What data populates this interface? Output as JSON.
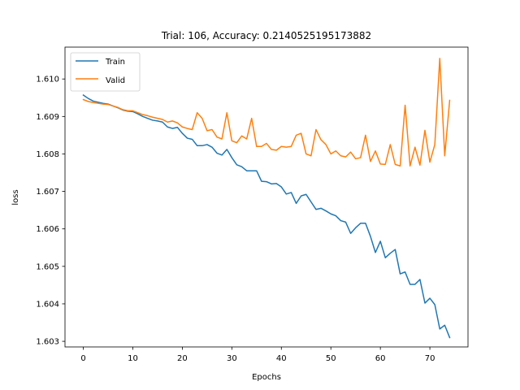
{
  "chart_data": {
    "type": "line",
    "title": "Trial: 106, Accuracy: 0.2140525195173882",
    "xlabel": "Epochs",
    "ylabel": "loss",
    "xlim": [
      -3.7,
      77.7
    ],
    "ylim": [
      1.60285,
      1.61085
    ],
    "xticks": [
      0,
      10,
      20,
      30,
      40,
      50,
      60,
      70
    ],
    "yticks": [
      1.603,
      1.604,
      1.605,
      1.606,
      1.607,
      1.608,
      1.609,
      1.61
    ],
    "ytick_labels": [
      "1.603",
      "1.604",
      "1.605",
      "1.606",
      "1.607",
      "1.608",
      "1.609",
      "1.610"
    ],
    "grid": false,
    "legend_position": "upper-left",
    "x": [
      0,
      1,
      2,
      3,
      4,
      5,
      6,
      7,
      8,
      9,
      10,
      11,
      12,
      13,
      14,
      15,
      16,
      17,
      18,
      19,
      20,
      21,
      22,
      23,
      24,
      25,
      26,
      27,
      28,
      29,
      30,
      31,
      32,
      33,
      34,
      35,
      36,
      37,
      38,
      39,
      40,
      41,
      42,
      43,
      44,
      45,
      46,
      47,
      48,
      49,
      50,
      51,
      52,
      53,
      54,
      55,
      56,
      57,
      58,
      59,
      60,
      61,
      62,
      63,
      64,
      65,
      66,
      67,
      68,
      69,
      70,
      71,
      72,
      73,
      74
    ],
    "series": [
      {
        "name": "Train",
        "color": "#1f77b4",
        "values": [
          1.60957,
          1.60948,
          1.60941,
          1.60938,
          1.60935,
          1.60933,
          1.60928,
          1.60923,
          1.60917,
          1.60914,
          1.60913,
          1.60907,
          1.609,
          1.60895,
          1.6089,
          1.60888,
          1.60885,
          1.60872,
          1.60868,
          1.60871,
          1.60855,
          1.60842,
          1.60839,
          1.60822,
          1.60822,
          1.60825,
          1.60818,
          1.60802,
          1.60797,
          1.60812,
          1.6079,
          1.60771,
          1.60766,
          1.60755,
          1.60755,
          1.60755,
          1.60727,
          1.60726,
          1.6072,
          1.60721,
          1.60712,
          1.60693,
          1.60697,
          1.60668,
          1.60688,
          1.60692,
          1.60672,
          1.60652,
          1.60655,
          1.60648,
          1.6064,
          1.60635,
          1.60622,
          1.60618,
          1.60588,
          1.60603,
          1.60615,
          1.60615,
          1.6058,
          1.60537,
          1.60567,
          1.60523,
          1.60535,
          1.60545,
          1.6048,
          1.60485,
          1.60452,
          1.60452,
          1.60465,
          1.60402,
          1.60415,
          1.60398,
          1.60333,
          1.60343,
          1.6031
        ]
      },
      {
        "name": "Valid",
        "color": "#ff7f0e",
        "values": [
          1.60945,
          1.6094,
          1.60937,
          1.60935,
          1.60933,
          1.60932,
          1.60928,
          1.60924,
          1.60918,
          1.60915,
          1.60915,
          1.6091,
          1.60905,
          1.60902,
          1.60898,
          1.60895,
          1.60892,
          1.60885,
          1.60888,
          1.60883,
          1.60872,
          1.60868,
          1.60865,
          1.6091,
          1.60895,
          1.60862,
          1.60865,
          1.60845,
          1.6084,
          1.6091,
          1.60835,
          1.6083,
          1.60848,
          1.6084,
          1.60895,
          1.6082,
          1.6082,
          1.60828,
          1.60812,
          1.6081,
          1.6082,
          1.60818,
          1.6082,
          1.6085,
          1.60855,
          1.608,
          1.60795,
          1.60865,
          1.60838,
          1.60825,
          1.608,
          1.60808,
          1.60795,
          1.60792,
          1.60805,
          1.60787,
          1.6079,
          1.6085,
          1.6078,
          1.60808,
          1.60773,
          1.60772,
          1.60825,
          1.60772,
          1.60768,
          1.6093,
          1.60768,
          1.60818,
          1.6077,
          1.60863,
          1.60778,
          1.60825,
          1.61055,
          1.60795,
          1.60943
        ]
      }
    ]
  }
}
